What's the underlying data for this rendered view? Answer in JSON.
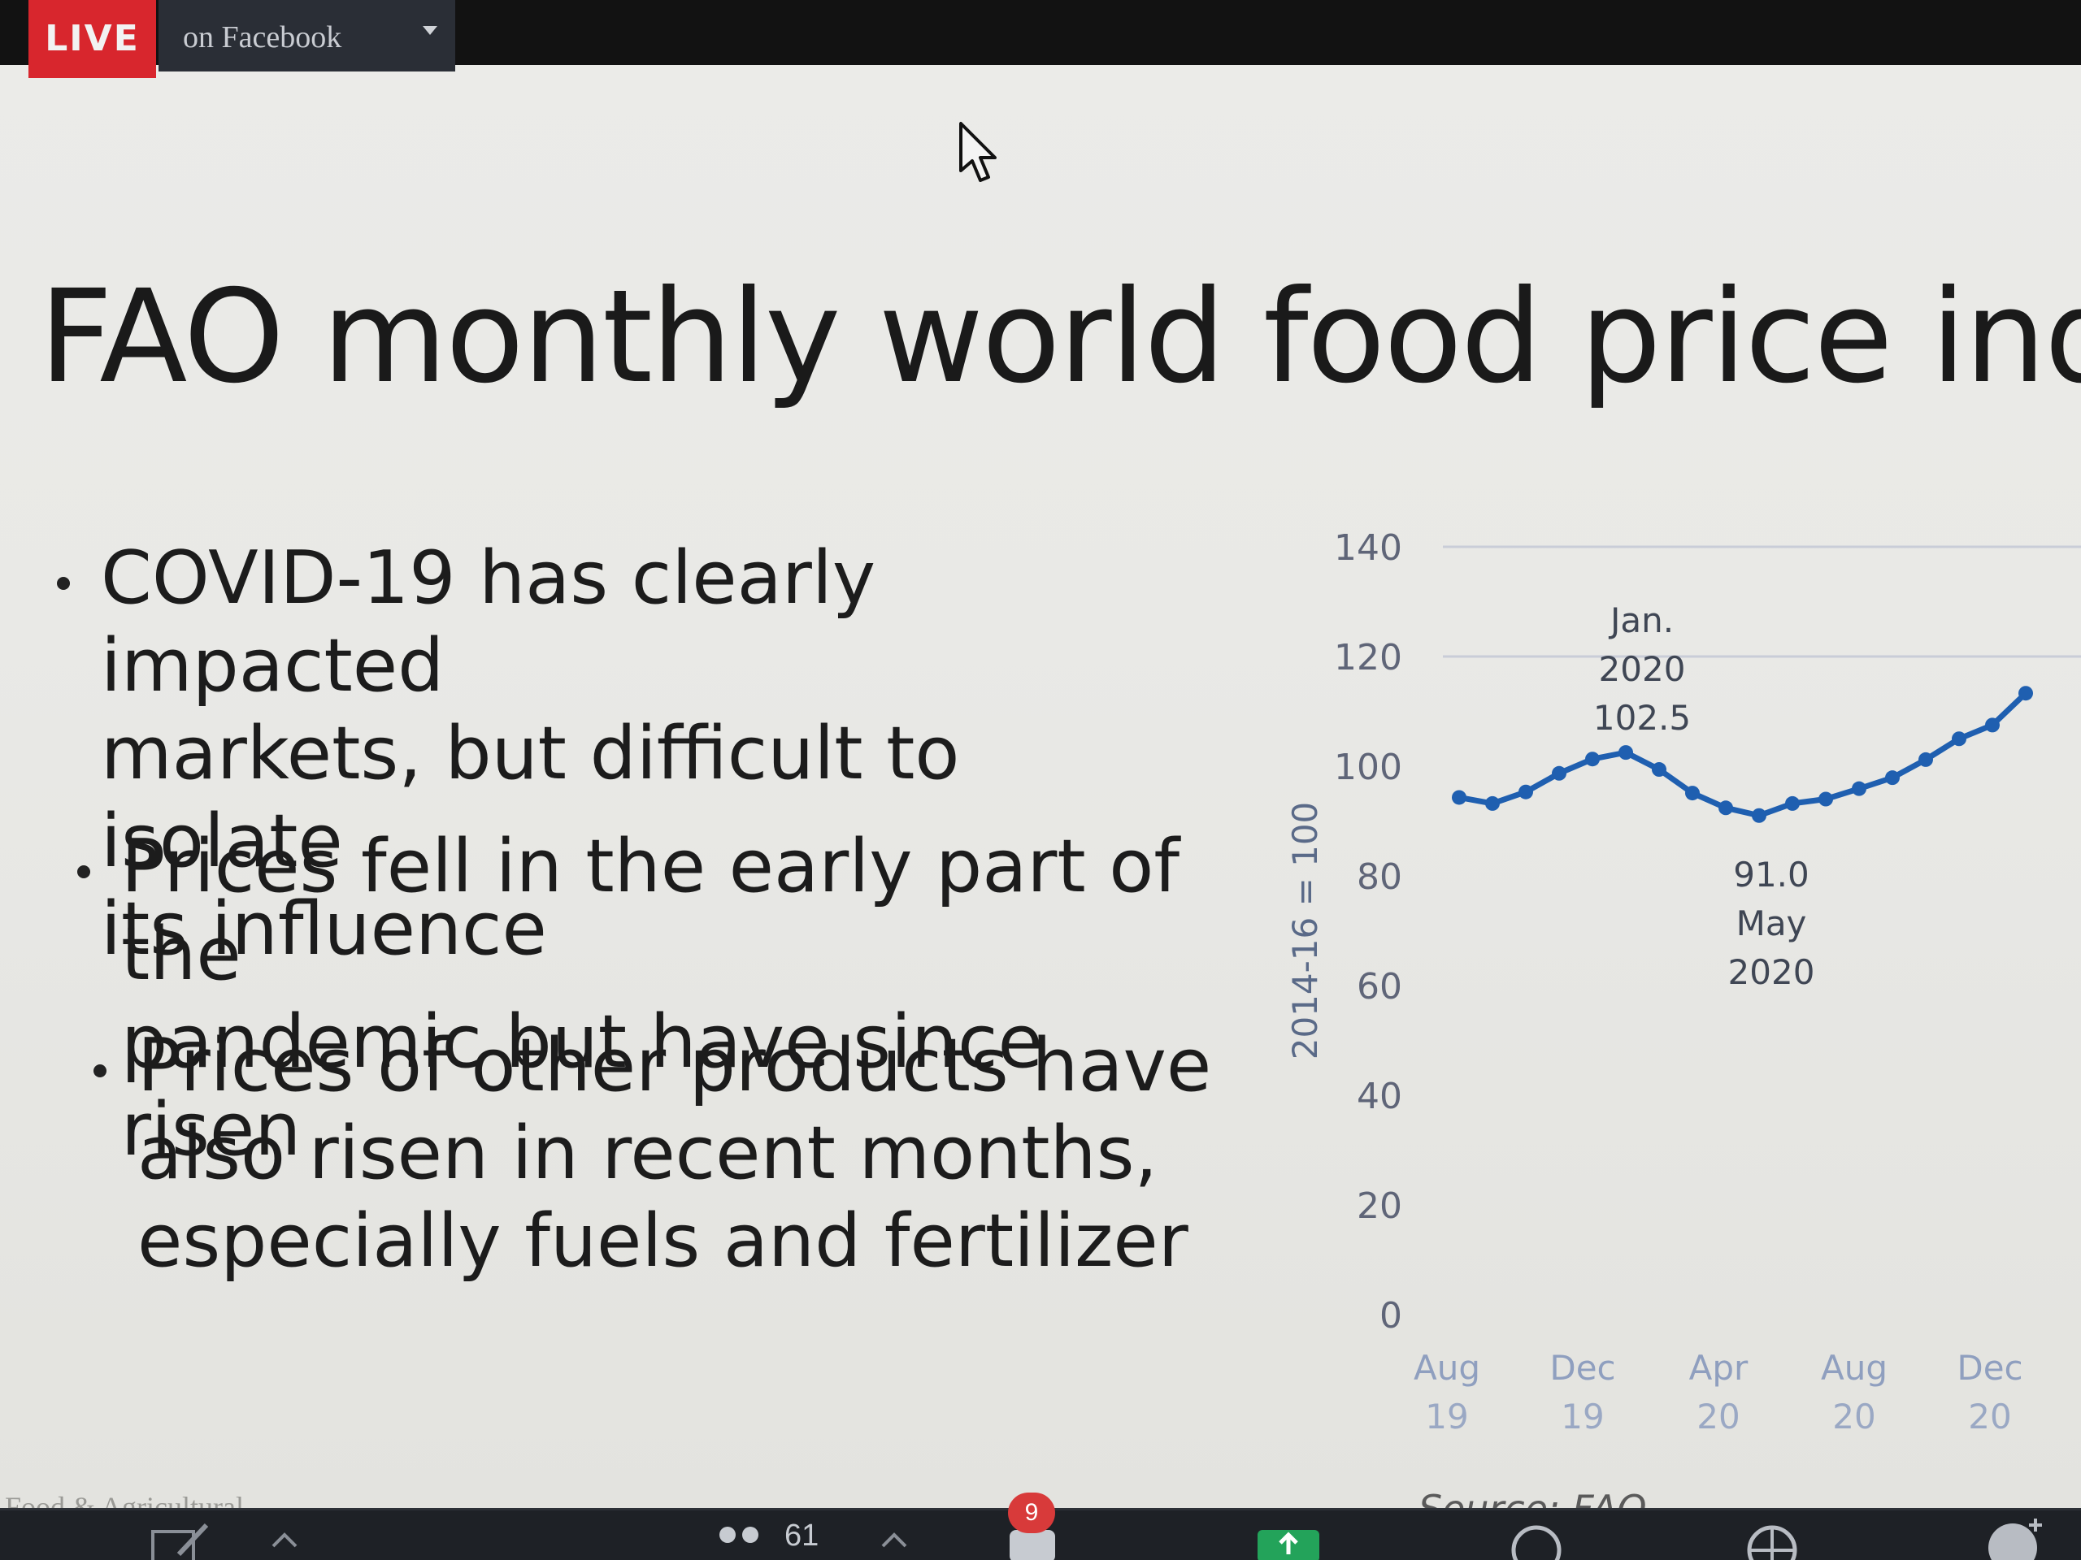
{
  "stream": {
    "live_label": "LIVE",
    "target_label": "on Facebook"
  },
  "slide": {
    "title": "FAO monthly world food price index",
    "bullets": [
      "COVID-19 has clearly impacted\nmarkets, but difficult to isolate\nits influence",
      "Prices fell in the early part of the\npandemic but have since risen",
      "Prices of other products have\nalso risen in recent months,\nespecially fuels and fertilizer"
    ],
    "footer_left": "Food & Agricultural",
    "source": "Source: FAO"
  },
  "chart_data": {
    "type": "line",
    "ylabel": "2014-16 = 100",
    "ylim": [
      0,
      140
    ],
    "yticks": [
      0,
      20,
      40,
      60,
      80,
      100,
      120,
      140
    ],
    "xtick_labels": [
      {
        "month": "Aug",
        "year": "19"
      },
      {
        "month": "Dec",
        "year": "19"
      },
      {
        "month": "Apr",
        "year": "20"
      },
      {
        "month": "Aug",
        "year": "20"
      },
      {
        "month": "Dec",
        "year": "20"
      }
    ],
    "x": [
      "Aug 19",
      "Sep 19",
      "Oct 19",
      "Nov 19",
      "Dec 19",
      "Jan 20",
      "Feb 20",
      "Mar 20",
      "Apr 20",
      "May 20",
      "Jun 20",
      "Jul 20",
      "Aug 20",
      "Sep 20",
      "Oct 20",
      "Nov 20",
      "Dec 20",
      "Jan 21"
    ],
    "series": [
      {
        "color": "#1f5fb0",
        "values": [
          94.3,
          93.2,
          95.3,
          98.7,
          101.3,
          102.5,
          99.4,
          95.1,
          92.4,
          91.0,
          93.2,
          94.0,
          95.9,
          97.9,
          101.2,
          105.0,
          107.5,
          113.3
        ]
      }
    ],
    "annotations": [
      {
        "lines": [
          "Jan.",
          "2020",
          "102.5"
        ],
        "at": "Jan 20"
      },
      {
        "lines": [
          "91.0",
          "May",
          "2020"
        ],
        "at": "May 20"
      }
    ],
    "grid": true
  },
  "toolbar": {
    "participants_count": "61",
    "chat_badge": "9"
  }
}
